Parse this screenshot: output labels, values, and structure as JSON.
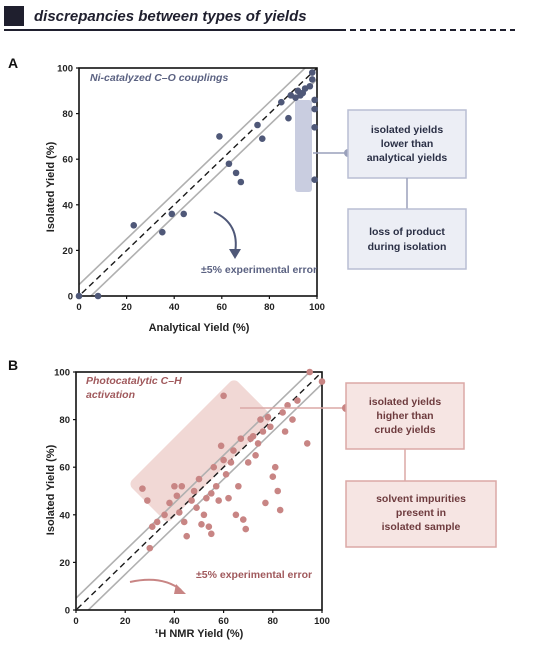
{
  "header": {
    "title": "discrepancies between types of yields"
  },
  "colors": {
    "panel_a": "#4f5878",
    "panel_b": "#c88584",
    "box_a_fill": "#eceef5",
    "box_a_stroke": "#b9bed3",
    "box_b_fill": "#f6e5e3",
    "box_b_stroke": "#dba8a6",
    "diag": "#1a1a1a",
    "band": "#b0b0b0"
  },
  "chart_data": [
    {
      "type": "scatter",
      "panel": "A",
      "subtitle": "Ni-catalyzed C–O couplings",
      "xlabel": "Analytical Yield (%)",
      "ylabel": "Isolated Yield (%)",
      "xlim": [
        0,
        100
      ],
      "ylim": [
        0,
        100
      ],
      "xticks": [
        "0",
        "20",
        "40",
        "60",
        "80",
        "100"
      ],
      "yticks": [
        "0",
        "20",
        "40",
        "60",
        "80",
        "100"
      ],
      "reference_line": "y = x (dashed)",
      "band": "±5%",
      "annotation": "±5% experimental error",
      "callout_primary": [
        "isolated yields",
        "lower than",
        "analytical yields"
      ],
      "callout_secondary": [
        "loss of product",
        "during isolation"
      ],
      "points": [
        [
          0,
          0
        ],
        [
          8,
          0
        ],
        [
          23,
          31
        ],
        [
          35,
          28
        ],
        [
          39,
          36
        ],
        [
          44,
          36
        ],
        [
          59,
          70
        ],
        [
          63,
          58
        ],
        [
          66,
          54
        ],
        [
          68,
          50
        ],
        [
          75,
          75
        ],
        [
          77,
          69
        ],
        [
          85,
          85
        ],
        [
          88,
          78
        ],
        [
          89,
          88
        ],
        [
          91,
          87
        ],
        [
          92,
          90
        ],
        [
          93,
          88
        ],
        [
          94,
          89
        ],
        [
          95,
          91
        ],
        [
          97,
          92
        ],
        [
          98,
          98
        ],
        [
          98,
          95
        ],
        [
          99,
          86
        ],
        [
          99,
          82
        ],
        [
          99,
          74
        ],
        [
          99,
          51
        ]
      ]
    },
    {
      "type": "scatter",
      "panel": "B",
      "subtitle": [
        "Photocatalytic C–H",
        "activation"
      ],
      "xlabel": "¹H NMR Yield (%)",
      "ylabel": "Isolated Yield (%)",
      "xlim": [
        0,
        100
      ],
      "ylim": [
        0,
        100
      ],
      "xticks": [
        "0",
        "20",
        "40",
        "60",
        "80",
        "100"
      ],
      "yticks": [
        "0",
        "20",
        "40",
        "60",
        "80",
        "100"
      ],
      "reference_line": "y = x (dashed)",
      "band": "±5%",
      "annotation": "±5% experimental error",
      "callout_primary": [
        "isolated yields",
        "higher than",
        "crude yields"
      ],
      "callout_secondary": [
        "solvent impurities",
        "present in",
        "isolated sample"
      ],
      "points": [
        [
          27,
          51
        ],
        [
          29,
          46
        ],
        [
          31,
          35
        ],
        [
          33,
          37
        ],
        [
          30,
          26
        ],
        [
          36,
          40
        ],
        [
          38,
          45
        ],
        [
          40,
          52
        ],
        [
          41,
          48
        ],
        [
          42,
          41
        ],
        [
          43,
          52
        ],
        [
          44,
          37
        ],
        [
          45,
          31
        ],
        [
          47,
          46
        ],
        [
          48,
          50
        ],
        [
          49,
          43
        ],
        [
          50,
          55
        ],
        [
          51,
          36
        ],
        [
          52,
          40
        ],
        [
          53,
          47
        ],
        [
          54,
          35
        ],
        [
          55,
          32
        ],
        [
          55,
          49
        ],
        [
          56,
          60
        ],
        [
          57,
          52
        ],
        [
          58,
          46
        ],
        [
          59,
          69
        ],
        [
          60,
          63
        ],
        [
          61,
          57
        ],
        [
          62,
          47
        ],
        [
          63,
          62
        ],
        [
          64,
          67
        ],
        [
          65,
          40
        ],
        [
          66,
          52
        ],
        [
          67,
          72
        ],
        [
          68,
          38
        ],
        [
          69,
          34
        ],
        [
          70,
          62
        ],
        [
          71,
          72
        ],
        [
          72,
          73
        ],
        [
          73,
          65
        ],
        [
          74,
          70
        ],
        [
          75,
          80
        ],
        [
          76,
          75
        ],
        [
          77,
          45
        ],
        [
          78,
          81
        ],
        [
          79,
          77
        ],
        [
          80,
          56
        ],
        [
          81,
          60
        ],
        [
          82,
          50
        ],
        [
          83,
          42
        ],
        [
          84,
          83
        ],
        [
          85,
          75
        ],
        [
          86,
          86
        ],
        [
          88,
          80
        ],
        [
          90,
          88
        ],
        [
          94,
          70
        ],
        [
          95,
          100
        ],
        [
          100,
          96
        ],
        [
          60,
          90
        ]
      ]
    }
  ]
}
